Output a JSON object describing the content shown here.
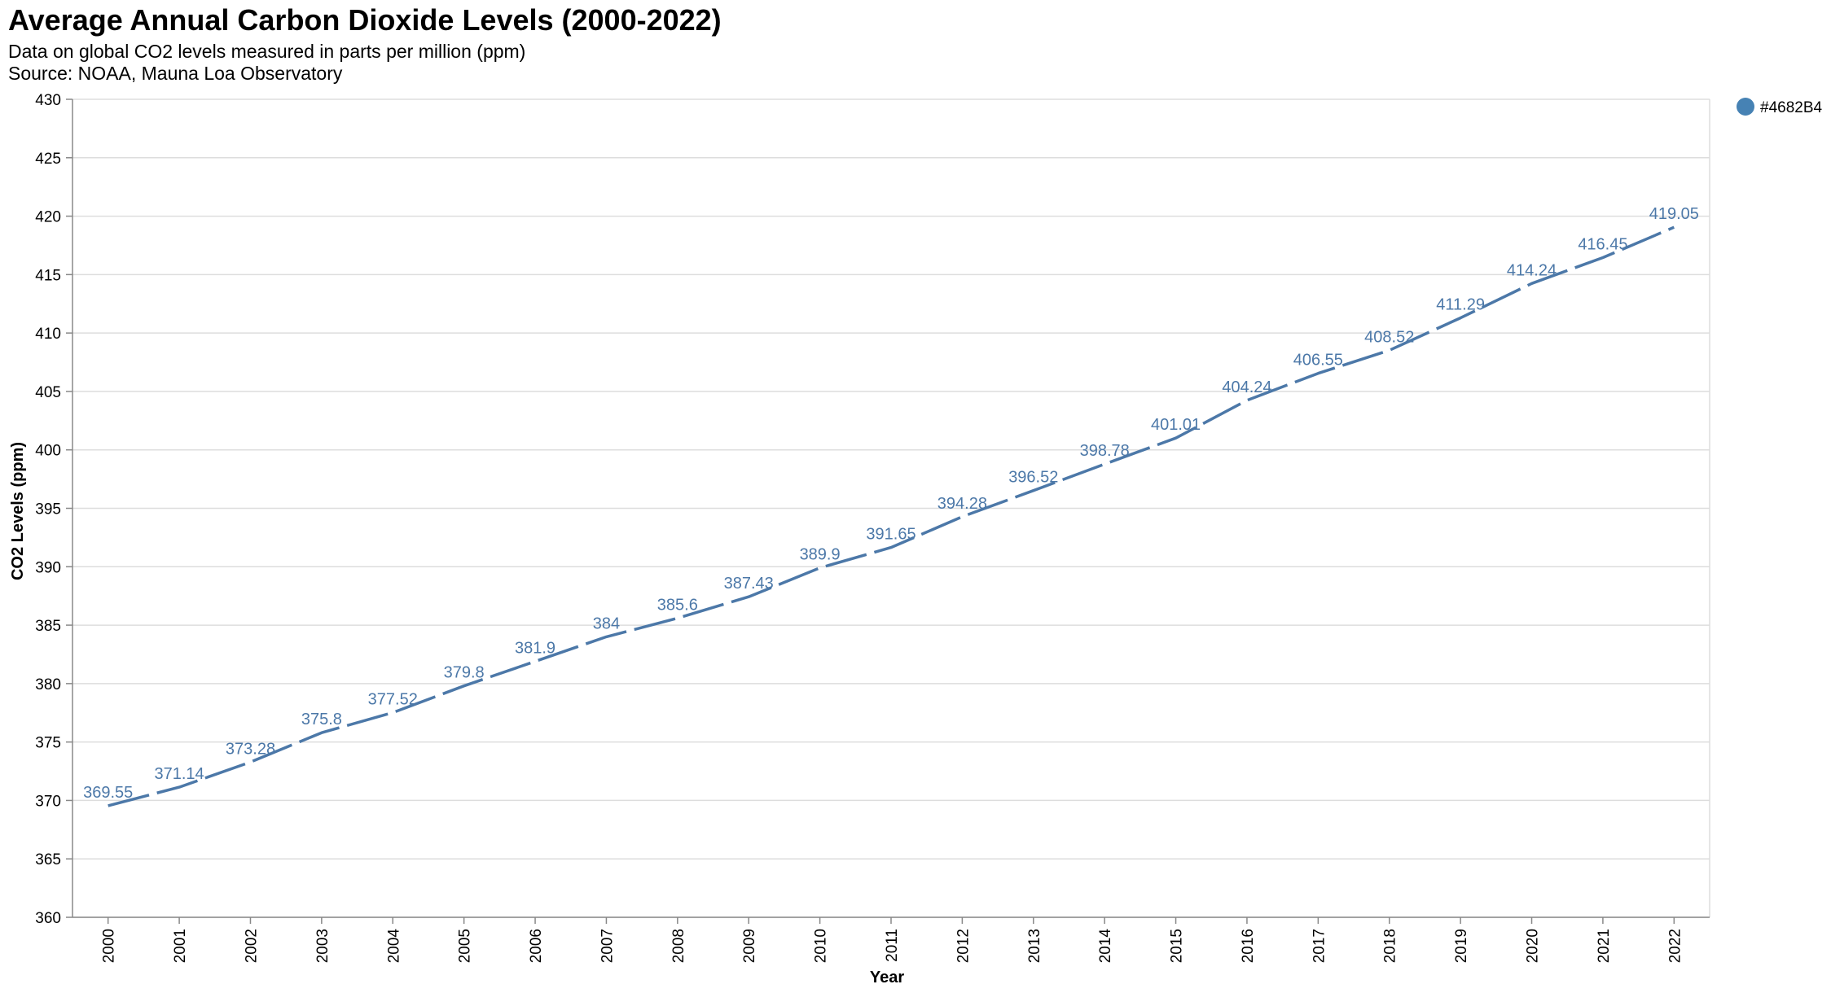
{
  "chart_data": {
    "type": "line",
    "title": "Average Annual Carbon Dioxide Levels (2000-2022)",
    "subtitle": [
      "Data on global CO2 levels measured in parts per million (ppm)",
      "Source: NOAA, Mauna Loa Observatory"
    ],
    "xlabel": "Year",
    "ylabel": "CO2 Levels (ppm)",
    "ylim": [
      360,
      430
    ],
    "y_ticks": [
      360,
      365,
      370,
      375,
      380,
      385,
      390,
      395,
      400,
      405,
      410,
      415,
      420,
      425,
      430
    ],
    "grid": true,
    "line_style": "dashed",
    "legend": {
      "position": "top-right",
      "entries": [
        {
          "label": "#4682B4",
          "color": "#4682B4"
        }
      ]
    },
    "series": [
      {
        "color": "#4c78a8",
        "x": [
          "2000",
          "2001",
          "2002",
          "2003",
          "2004",
          "2005",
          "2006",
          "2007",
          "2008",
          "2009",
          "2010",
          "2011",
          "2012",
          "2013",
          "2014",
          "2015",
          "2016",
          "2017",
          "2018",
          "2019",
          "2020",
          "2021",
          "2022"
        ],
        "values": [
          369.55,
          371.14,
          373.28,
          375.8,
          377.52,
          379.8,
          381.9,
          384,
          385.6,
          387.43,
          389.9,
          391.65,
          394.28,
          396.52,
          398.78,
          401.01,
          404.24,
          406.55,
          408.52,
          411.29,
          414.24,
          416.45,
          419.05
        ],
        "labels": [
          "369.55",
          "371.14",
          "373.28",
          "375.8",
          "377.52",
          "379.8",
          "381.9",
          "384",
          "385.6",
          "387.43",
          "389.9",
          "391.65",
          "394.28",
          "396.52",
          "398.78",
          "401.01",
          "404.24",
          "406.55",
          "408.52",
          "411.29",
          "414.24",
          "416.45",
          "419.05"
        ]
      }
    ]
  }
}
